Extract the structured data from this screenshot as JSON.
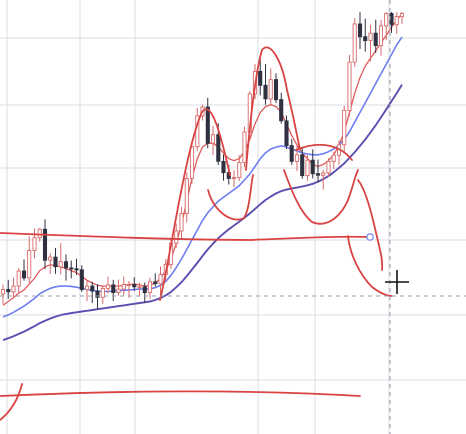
{
  "colors": {
    "background": "#ffffff",
    "grid": "#dadde6",
    "bull_candle": "#d96a6a",
    "bear_candle": "#2f3140",
    "ma_fast": "#e05c5c",
    "ma_mid": "#6d7ef0",
    "ma_slow": "#5c4eb0",
    "annotation": "#d94343",
    "crosshair": "#9aa0ac",
    "cursor": "#111111"
  },
  "chart_data": {
    "type": "candlestick",
    "title": "",
    "xlabel": "",
    "ylabel": "",
    "grid": true,
    "y_axis_visible": false,
    "x_axis_visible": false,
    "ylim": [
      0,
      100
    ],
    "candles": [
      [
        26.9,
        29.4,
        24.4,
        28.1
      ],
      [
        28.1,
        30.6,
        25.7,
        27.5
      ],
      [
        27.5,
        31.2,
        26.2,
        29.0
      ],
      [
        29.0,
        33.7,
        27.3,
        32.9
      ],
      [
        32.9,
        35.9,
        30.4,
        31.1
      ],
      [
        31.1,
        41.9,
        29.7,
        38.2
      ],
      [
        38.2,
        43.9,
        36.2,
        41.5
      ],
      [
        41.5,
        44.1,
        40.5,
        43.7
      ],
      [
        43.7,
        46.3,
        33.4,
        35.7
      ],
      [
        35.7,
        37.5,
        32.1,
        36.5
      ],
      [
        36.5,
        38.9,
        32.2,
        34.0
      ],
      [
        34.0,
        40.1,
        32.0,
        35.3
      ],
      [
        35.3,
        37.2,
        30.4,
        33.7
      ],
      [
        33.7,
        35.6,
        31.0,
        33.5
      ],
      [
        33.5,
        36.1,
        31.9,
        33.2
      ],
      [
        33.2,
        34.4,
        27.5,
        28.1
      ],
      [
        28.1,
        30.3,
        25.1,
        29.0
      ],
      [
        29.0,
        30.1,
        24.6,
        27.7
      ],
      [
        27.7,
        29.5,
        23.1,
        26.1
      ],
      [
        26.1,
        29.1,
        24.3,
        28.4
      ],
      [
        28.4,
        31.4,
        27.1,
        29.3
      ],
      [
        29.3,
        30.6,
        25.1,
        27.3
      ],
      [
        27.3,
        30.7,
        26.5,
        28.2
      ],
      [
        28.2,
        31.5,
        26.6,
        29.4
      ],
      [
        29.4,
        30.3,
        26.0,
        29.4
      ],
      [
        29.4,
        31.3,
        27.7,
        28.8
      ],
      [
        28.8,
        29.9,
        26.2,
        28.8
      ],
      [
        28.8,
        29.9,
        24.7,
        27.3
      ],
      [
        27.3,
        31.2,
        25.7,
        30.1
      ],
      [
        30.1,
        32.3,
        28.9,
        29.6
      ],
      [
        29.6,
        34.1,
        26.6,
        32.0
      ],
      [
        32.0,
        36.0,
        30.3,
        34.6
      ],
      [
        34.6,
        41.0,
        33.4,
        40.1
      ],
      [
        40.1,
        45.2,
        38.9,
        43.3
      ],
      [
        43.3,
        49.5,
        41.4,
        47.8
      ],
      [
        47.8,
        58.5,
        45.5,
        56.9
      ],
      [
        56.9,
        66.2,
        55.5,
        65.1
      ],
      [
        65.1,
        75.2,
        64.0,
        73.1
      ],
      [
        73.1,
        76.0,
        71.9,
        75.4
      ],
      [
        75.4,
        77.8,
        64.7,
        66.0
      ],
      [
        66.0,
        70.5,
        62.9,
        68.2
      ],
      [
        68.2,
        71.2,
        60.4,
        61.3
      ],
      [
        61.3,
        63.1,
        56.3,
        58.4
      ],
      [
        58.4,
        60.4,
        55.3,
        56.9
      ],
      [
        56.9,
        59.0,
        54.6,
        57.1
      ],
      [
        57.1,
        62.9,
        56.2,
        61.0
      ],
      [
        61.0,
        70.3,
        59.8,
        68.9
      ],
      [
        68.9,
        79.5,
        67.7,
        78.8
      ],
      [
        78.8,
        86.5,
        77.4,
        84.6
      ],
      [
        84.6,
        88.6,
        78.4,
        81.0
      ],
      [
        81.0,
        86.5,
        76.0,
        77.5
      ],
      [
        77.5,
        85.4,
        75.7,
        82.5
      ],
      [
        82.5,
        84.1,
        76.4,
        77.3
      ],
      [
        77.3,
        79.1,
        71.1,
        71.8
      ],
      [
        71.8,
        73.2,
        64.5,
        65.4
      ],
      [
        65.4,
        67.1,
        60.4,
        61.3
      ],
      [
        61.3,
        65.3,
        58.8,
        63.0
      ],
      [
        63.0,
        65.0,
        56.8,
        57.6
      ],
      [
        57.6,
        62.9,
        56.3,
        61.6
      ],
      [
        61.6,
        64.4,
        56.9,
        58.1
      ],
      [
        58.1,
        61.8,
        55.9,
        57.7
      ],
      [
        57.7,
        59.1,
        54.0,
        58.3
      ],
      [
        58.3,
        62.1,
        57.3,
        61.3
      ],
      [
        61.3,
        63.8,
        59.3,
        62.9
      ],
      [
        62.9,
        66.7,
        60.4,
        65.6
      ],
      [
        65.6,
        75.7,
        63.8,
        74.5
      ],
      [
        74.5,
        88.9,
        73.0,
        87.0
      ],
      [
        87.0,
        98.4,
        85.8,
        96.9
      ],
      [
        96.9,
        100.0,
        90.4,
        93.6
      ],
      [
        93.6,
        98.3,
        89.7,
        92.6
      ],
      [
        92.6,
        96.7,
        87.2,
        94.5
      ],
      [
        94.5,
        98.0,
        89.4,
        91.3
      ],
      [
        91.3,
        97.9,
        88.7,
        96.4
      ],
      [
        96.4,
        100.0,
        92.7,
        99.6
      ],
      [
        99.6,
        100.0,
        94.6,
        96.7
      ],
      [
        96.7,
        100.0,
        94.3,
        98.8
      ],
      [
        98.8,
        100.0,
        96.9,
        99.6
      ]
    ],
    "moving_averages": [
      {
        "role": "fast",
        "values": [
          24.0,
          25.0,
          26.0,
          27.2,
          28.0,
          29.5,
          31.0,
          33.0,
          34.0,
          34.5,
          34.3,
          34.0,
          33.5,
          33.0,
          32.5,
          31.5,
          30.5,
          29.8,
          29.2,
          29.0,
          29.0,
          29.0,
          29.0,
          29.2,
          29.4,
          29.5,
          29.3,
          29.0,
          29.2,
          29.8,
          31.0,
          33.0,
          36.0,
          40.0,
          45.0,
          51.0,
          57.0,
          62.0,
          65.0,
          66.0,
          66.0,
          65.0,
          63.5,
          62.0,
          61.5,
          62.0,
          64.0,
          67.0,
          71.0,
          74.0,
          75.5,
          76.0,
          75.5,
          74.0,
          71.0,
          68.0,
          65.5,
          63.5,
          62.0,
          60.5,
          60.0,
          60.5,
          61.5,
          63.0,
          65.5,
          69.0,
          74.0,
          79.0,
          83.0,
          86.0,
          88.0,
          90.0,
          92.0,
          94.0,
          96.0,
          98.0,
          99.5
        ]
      },
      {
        "role": "mid",
        "values": [
          21.0,
          21.5,
          22.2,
          23.0,
          23.8,
          24.8,
          25.8,
          27.0,
          27.8,
          28.4,
          28.8,
          29.0,
          29.0,
          28.9,
          28.7,
          28.4,
          28.1,
          27.9,
          27.7,
          27.6,
          27.6,
          27.7,
          27.8,
          27.9,
          28.0,
          28.1,
          28.2,
          28.2,
          28.3,
          28.6,
          29.2,
          30.2,
          31.8,
          33.8,
          36.0,
          38.5,
          41.0,
          43.5,
          46.0,
          48.0,
          49.5,
          51.0,
          52.0,
          53.0,
          54.0,
          55.0,
          56.5,
          58.0,
          60.0,
          62.0,
          63.5,
          64.5,
          65.0,
          65.3,
          65.0,
          64.5,
          64.0,
          63.5,
          63.2,
          63.0,
          63.0,
          63.3,
          63.8,
          64.5,
          65.5,
          67.0,
          69.0,
          71.5,
          74.0,
          76.5,
          79.0,
          81.5,
          84.0,
          86.5,
          89.0,
          91.5,
          93.5
        ]
      },
      {
        "role": "slow",
        "values": [
          15.0,
          15.5,
          16.0,
          16.6,
          17.2,
          17.9,
          18.6,
          19.4,
          20.0,
          20.6,
          21.1,
          21.5,
          21.8,
          22.0,
          22.2,
          22.4,
          22.6,
          22.8,
          23.0,
          23.2,
          23.4,
          23.6,
          23.8,
          24.0,
          24.2,
          24.4,
          24.6,
          24.8,
          25.0,
          25.4,
          25.9,
          26.6,
          27.5,
          28.7,
          30.0,
          31.6,
          33.3,
          35.0,
          36.8,
          38.5,
          40.0,
          41.4,
          42.6,
          43.7,
          44.7,
          45.7,
          46.7,
          47.8,
          49.0,
          50.2,
          51.3,
          52.2,
          53.0,
          53.6,
          54.0,
          54.3,
          54.5,
          54.8,
          55.1,
          55.5,
          56.0,
          56.7,
          57.5,
          58.5,
          59.6,
          60.8,
          62.2,
          63.7,
          65.3,
          67.0,
          68.8,
          70.7,
          72.7,
          74.8,
          76.9,
          79.0,
          81.2
        ]
      }
    ],
    "annotations": [
      {
        "kind": "horizontal-line",
        "label": ""
      },
      {
        "kind": "horizontal-line",
        "label": ""
      },
      {
        "kind": "freehand-head-and-shoulders",
        "label": ""
      },
      {
        "kind": "projection-arrow",
        "label": ""
      }
    ]
  },
  "cursor": {
    "icon": "crosshair-icon"
  }
}
